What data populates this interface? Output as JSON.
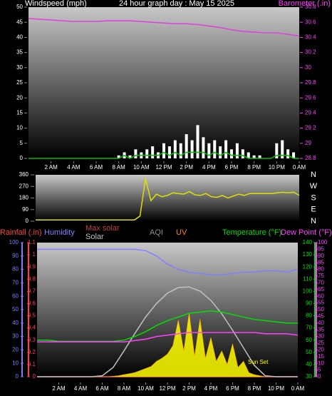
{
  "chart_data": [
    {
      "type": "line",
      "title": "24 hour graph day : May 15 2025",
      "y_label": "Windspeed (mph)",
      "y2_label": "Barometer (.in)",
      "xlim": [
        0,
        24
      ],
      "xticks": [
        {
          "value": 2,
          "label": "2 AM"
        },
        {
          "value": 4,
          "label": "4 AM"
        },
        {
          "value": 6,
          "label": "6 AM"
        },
        {
          "value": 8,
          "label": "8 AM"
        },
        {
          "value": 10,
          "label": "10 AM"
        },
        {
          "value": 12,
          "label": "12 PM"
        },
        {
          "value": 14,
          "label": "2 PM"
        },
        {
          "value": 16,
          "label": "4 PM"
        },
        {
          "value": 18,
          "label": "6 PM"
        },
        {
          "value": 20,
          "label": "8 PM"
        },
        {
          "value": 22,
          "label": "10 PM"
        },
        {
          "value": 24,
          "label": "0 AM"
        }
      ],
      "ylim": [
        0,
        50
      ],
      "yticks": [
        0,
        5,
        10,
        15,
        20,
        25,
        30,
        35,
        40,
        45,
        50
      ],
      "y2lim": [
        28.8,
        30.8
      ],
      "y2ticks": [
        28.8,
        29,
        29.2,
        29.4,
        29.6,
        29.8,
        30,
        30.2,
        30.4,
        30.6,
        30.8
      ],
      "series": [
        {
          "style": "bars",
          "color": "#ffffff",
          "x": [
            0,
            0.5,
            1,
            1.5,
            2,
            2.5,
            3,
            3.5,
            4,
            4.5,
            5,
            5.5,
            6,
            6.5,
            7,
            7.5,
            8,
            8.5,
            9,
            9.5,
            10,
            10.5,
            11,
            11.5,
            12,
            12.5,
            13,
            13.5,
            14,
            14.5,
            15,
            15.5,
            16,
            16.5,
            17,
            17.5,
            18,
            18.5,
            19,
            19.5,
            20,
            20.5,
            21,
            21.5,
            22,
            22.5,
            23,
            23.5,
            24
          ],
          "values": [
            0,
            0,
            0,
            0,
            0,
            0,
            0,
            0,
            0,
            0,
            0,
            0,
            0,
            0,
            0,
            0,
            1,
            2,
            1,
            3,
            2,
            3,
            4,
            2,
            5,
            4,
            6,
            5,
            8,
            6,
            11,
            7,
            5,
            6,
            4,
            6,
            3,
            5,
            3,
            2,
            1,
            1,
            0,
            0,
            5,
            6,
            3,
            2,
            0
          ]
        },
        {
          "style": "line",
          "color": "#00c000",
          "x": [
            0,
            0.5,
            1,
            1.5,
            2,
            2.5,
            3,
            3.5,
            4,
            4.5,
            5,
            5.5,
            6,
            6.5,
            7,
            7.5,
            8,
            8.5,
            9,
            9.5,
            10,
            10.5,
            11,
            11.5,
            12,
            12.5,
            13,
            13.5,
            14,
            14.5,
            15,
            15.5,
            16,
            16.5,
            17,
            17.5,
            18,
            18.5,
            19,
            19.5,
            20,
            20.5,
            21,
            21.5,
            22,
            22.5,
            23,
            23.5,
            24
          ],
          "values": [
            0,
            0,
            0,
            0,
            0,
            0,
            0,
            0,
            0,
            0,
            0,
            0,
            0,
            0,
            0,
            0,
            0,
            1,
            0,
            1,
            1,
            1,
            1,
            1,
            2,
            1,
            2,
            1,
            2,
            2,
            2,
            2,
            1,
            2,
            1,
            2,
            1,
            1,
            1,
            0,
            0,
            0,
            0,
            0,
            1,
            1,
            1,
            0,
            0
          ]
        },
        {
          "style": "line",
          "axis": "y2",
          "color": "#e040e0",
          "x": [
            0,
            1,
            2,
            3,
            4,
            5,
            6,
            7,
            8,
            9,
            10,
            11,
            12,
            13,
            14,
            15,
            16,
            17,
            18,
            19,
            20,
            21,
            22,
            23,
            24
          ],
          "values": [
            30.65,
            30.64,
            30.63,
            30.62,
            30.61,
            30.61,
            30.61,
            30.62,
            30.62,
            30.62,
            30.61,
            30.6,
            30.59,
            30.58,
            30.58,
            30.57,
            30.55,
            30.53,
            30.5,
            30.48,
            30.47,
            30.46,
            30.46,
            30.44,
            30.42
          ]
        }
      ]
    },
    {
      "type": "line",
      "xlim": [
        0,
        24
      ],
      "ylim": [
        0,
        360
      ],
      "yticks": [
        0,
        90,
        180,
        270,
        360
      ],
      "compass_labels": [
        "N",
        "W",
        "S",
        "E",
        "N"
      ],
      "series": [
        {
          "style": "line",
          "color": "#e0e000",
          "x": [
            0,
            0.5,
            1,
            1.5,
            2,
            2.5,
            3,
            3.5,
            4,
            4.5,
            5,
            5.5,
            6,
            6.5,
            7,
            7.5,
            8,
            8.5,
            9,
            9.5,
            10,
            10.5,
            11,
            11.5,
            12,
            12.5,
            13,
            13.5,
            14,
            14.5,
            15,
            15.5,
            16,
            16.5,
            17,
            17.5,
            18,
            18.5,
            19,
            19.5,
            20,
            20.5,
            21,
            21.5,
            22,
            22.5,
            23,
            23.5,
            24
          ],
          "values": [
            10,
            10,
            10,
            10,
            10,
            10,
            10,
            10,
            10,
            10,
            10,
            10,
            10,
            10,
            10,
            10,
            10,
            10,
            10,
            40,
            330,
            160,
            210,
            190,
            200,
            220,
            215,
            210,
            230,
            205,
            200,
            215,
            190,
            185,
            200,
            180,
            195,
            210,
            200,
            215,
            215,
            215,
            215,
            215,
            220,
            225,
            220,
            225,
            200
          ]
        }
      ]
    },
    {
      "type": "line",
      "xlim": [
        0,
        24
      ],
      "xticks": [
        {
          "value": 2,
          "label": "2 AM"
        },
        {
          "value": 4,
          "label": "4 AM"
        },
        {
          "value": 6,
          "label": "6 AM"
        },
        {
          "value": 8,
          "label": "8 AM"
        },
        {
          "value": 10,
          "label": "10 AM"
        },
        {
          "value": 12,
          "label": "12 PM"
        },
        {
          "value": 14,
          "label": "2 PM"
        },
        {
          "value": 16,
          "label": "4 PM"
        },
        {
          "value": 18,
          "label": "6 PM"
        },
        {
          "value": 20,
          "label": "8 PM"
        },
        {
          "value": 22,
          "label": "10 PM"
        },
        {
          "value": 24,
          "label": "0 AM"
        }
      ],
      "axes": [
        {
          "label": "Rainfall (.in)",
          "color": "#ff4040",
          "ylim": [
            0,
            1.1
          ],
          "yticks": [
            0,
            0.1,
            0.2,
            0.3,
            0.4,
            0.5,
            0.6,
            0.7,
            0.8,
            0.9,
            1,
            1.1
          ]
        },
        {
          "label": "Humidity",
          "color": "#8080ff",
          "ylim": [
            0,
            100
          ],
          "yticks": [
            0,
            10,
            20,
            30,
            40,
            50,
            60,
            70,
            80,
            90,
            100
          ]
        },
        {
          "label": "Temperature (°F)",
          "color": "#00e000",
          "ylim": [
            30,
            140
          ],
          "yticks": [
            30,
            40,
            50,
            60,
            70,
            80,
            90,
            100,
            110,
            120,
            130,
            140
          ]
        },
        {
          "label": "Dew Point (°F)",
          "color": "#ff40ff",
          "ylim": [
            0,
            100
          ],
          "yticks": [
            0,
            5,
            10,
            15,
            20,
            25,
            30,
            35,
            40,
            45,
            50,
            55,
            60,
            65,
            70,
            75,
            80,
            85,
            90,
            95,
            100
          ]
        }
      ],
      "solar_ylim": [
        0,
        1300
      ],
      "other_labels": [
        {
          "text": "AQI",
          "color": "#909090"
        },
        {
          "text": "UV",
          "color": "#ff8000"
        }
      ],
      "annotation": "Sun Set",
      "series": [
        {
          "axis": 0,
          "style": "line",
          "color": "#ff4040",
          "x": [
            0,
            1,
            2,
            3,
            4,
            5,
            6,
            7,
            8,
            9,
            10,
            11,
            12,
            13,
            14,
            15,
            16,
            17,
            18,
            19,
            20,
            21,
            22,
            23,
            24
          ],
          "values": [
            0,
            0,
            0,
            0,
            0,
            0,
            0,
            0,
            0,
            0,
            0,
            0,
            0,
            0,
            0,
            0,
            0,
            0,
            0,
            0,
            0,
            0,
            0,
            0,
            0
          ]
        },
        {
          "name": "Solar",
          "axis": "solar",
          "style": "area",
          "color": "#ffff00",
          "x": [
            0,
            0.5,
            1,
            1.5,
            2,
            2.5,
            3,
            3.5,
            4,
            4.5,
            5,
            5.5,
            6,
            6.5,
            7,
            7.5,
            8,
            8.5,
            9,
            9.5,
            10,
            10.5,
            11,
            11.5,
            12,
            12.5,
            13,
            13.5,
            14,
            14.5,
            15,
            15.5,
            16,
            16.5,
            17,
            17.5,
            18,
            18.5,
            19,
            19.5,
            20,
            20.5,
            21,
            21.5,
            22,
            22.5,
            23,
            23.5,
            24
          ],
          "values": [
            0,
            0,
            0,
            0,
            0,
            0,
            0,
            0,
            0,
            0,
            0,
            0,
            0,
            0,
            5,
            10,
            20,
            30,
            40,
            60,
            80,
            100,
            150,
            180,
            220,
            300,
            550,
            250,
            620,
            200,
            560,
            180,
            380,
            150,
            250,
            120,
            320,
            90,
            150,
            40,
            20,
            10,
            0,
            0,
            0,
            0,
            0,
            0,
            0
          ]
        },
        {
          "name": "Max solar",
          "axis": "solar",
          "style": "line",
          "color": "#c0c0c0",
          "x": [
            0,
            1,
            2,
            3,
            4,
            5,
            6,
            7,
            8,
            9,
            10,
            11,
            12,
            13,
            14,
            15,
            16,
            17,
            18,
            19,
            20,
            21,
            22,
            23,
            24
          ],
          "values": [
            0,
            0,
            0,
            0,
            0,
            0,
            10,
            90,
            250,
            420,
            580,
            710,
            810,
            865,
            870,
            830,
            740,
            610,
            450,
            280,
            110,
            10,
            0,
            0,
            0
          ]
        },
        {
          "axis": 1,
          "style": "line",
          "color": "#8080ff",
          "x": [
            0,
            1,
            2,
            3,
            4,
            5,
            6,
            7,
            8,
            9,
            10,
            11,
            12,
            13,
            14,
            15,
            16,
            17,
            18,
            19,
            20,
            21,
            22,
            23,
            24
          ],
          "values": [
            95,
            95,
            95,
            95,
            95,
            95,
            95,
            95,
            95,
            95,
            94,
            90,
            84,
            80,
            78,
            77,
            76,
            76,
            77,
            78,
            78,
            79,
            79,
            78,
            80
          ]
        },
        {
          "axis": 2,
          "style": "line",
          "color": "#00e000",
          "x": [
            0,
            1,
            2,
            3,
            4,
            5,
            6,
            7,
            8,
            9,
            10,
            11,
            12,
            13,
            14,
            15,
            16,
            17,
            18,
            19,
            20,
            21,
            22,
            23,
            24
          ],
          "values": [
            60,
            60,
            59,
            59,
            59,
            59,
            59,
            59,
            60,
            63,
            67,
            72,
            76,
            79,
            82,
            83,
            84,
            83,
            81,
            79,
            77,
            76,
            75,
            74,
            74
          ]
        },
        {
          "axis": 3,
          "style": "line",
          "color": "#ff40ff",
          "x": [
            0,
            1,
            2,
            3,
            4,
            5,
            6,
            7,
            8,
            9,
            10,
            11,
            12,
            13,
            14,
            15,
            16,
            17,
            18,
            19,
            20,
            21,
            22,
            23,
            24
          ],
          "values": [
            26,
            26,
            26,
            26,
            26,
            26,
            26,
            26,
            26,
            27,
            28,
            30,
            31,
            32,
            33,
            33,
            33,
            33,
            33,
            33,
            33,
            32,
            32,
            32,
            31
          ]
        }
      ]
    }
  ]
}
